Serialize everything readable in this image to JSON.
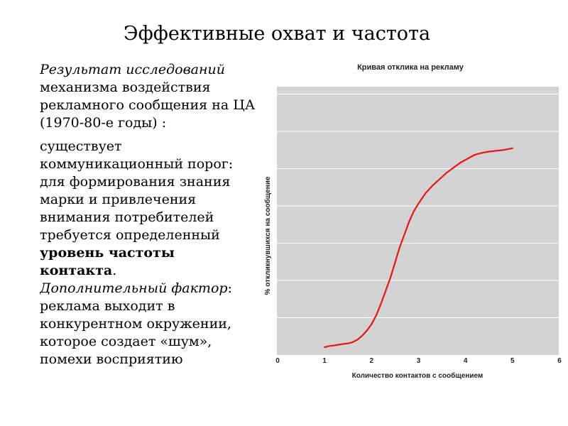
{
  "slide": {
    "title": "Эффективные охват и частота",
    "paragraphs": {
      "p1_italic": "Результат исследований",
      "p1_line2": "механизма воздействия",
      "p1_line3": "рекламного сообщения на ЦА",
      "p1_line4": "(1970-80-е годы) :",
      "p2_line1": "существует",
      "p2_line2": "коммуникационный порог:",
      "p2_line3": "для формирования знания",
      "p2_line4": "марки и привлечения",
      "p2_line5": "внимания потребителей",
      "p2_line6": "требуется определенный",
      "p2_bold1": "уровень частоты",
      "p2_bold2": "контакта",
      "p2_end": ".",
      "p3_italic": "Дополнительный фактор",
      "p3_colon": ":",
      "p3_line2": "реклама выходит в",
      "p3_line3": "конкурентном окружении,",
      "p3_line4": "которое создает «шум»,",
      "p3_line5": "помехи восприятию"
    }
  },
  "chart_data": {
    "type": "line",
    "title": "Кривая отклика на рекламу",
    "xlabel": "Количество контактов с сообщением",
    "ylabel": "% откликнувшихся на сообщение",
    "xlim": [
      0,
      6
    ],
    "x_ticks": [
      "0",
      "1",
      "2",
      "3",
      "4",
      "5",
      "6"
    ],
    "y_gridlines": 7,
    "grid": true,
    "colors": {
      "plot_bg": "#d3d3d3",
      "line": "#e8141c",
      "grid": "#ffffff"
    },
    "series": [
      {
        "x": [
          1.0,
          1.1,
          1.2,
          1.3,
          1.4,
          1.5,
          1.6,
          1.7,
          1.8,
          1.9,
          2.0,
          2.1,
          2.2,
          2.3,
          2.4,
          2.5,
          2.6,
          2.7,
          2.8,
          2.9,
          3.0,
          3.15,
          3.3,
          3.45,
          3.6,
          3.75,
          3.9,
          4.0,
          4.1,
          4.2,
          4.35,
          4.5,
          4.65,
          4.8,
          5.0
        ],
        "y": [
          0.3,
          0.35,
          0.37,
          0.4,
          0.43,
          0.45,
          0.5,
          0.6,
          0.75,
          0.95,
          1.2,
          1.55,
          2.0,
          2.5,
          3.0,
          3.6,
          4.2,
          4.7,
          5.2,
          5.6,
          5.9,
          6.3,
          6.6,
          6.85,
          7.1,
          7.3,
          7.5,
          7.6,
          7.7,
          7.8,
          7.87,
          7.92,
          7.95,
          7.98,
          8.05
        ]
      }
    ]
  }
}
